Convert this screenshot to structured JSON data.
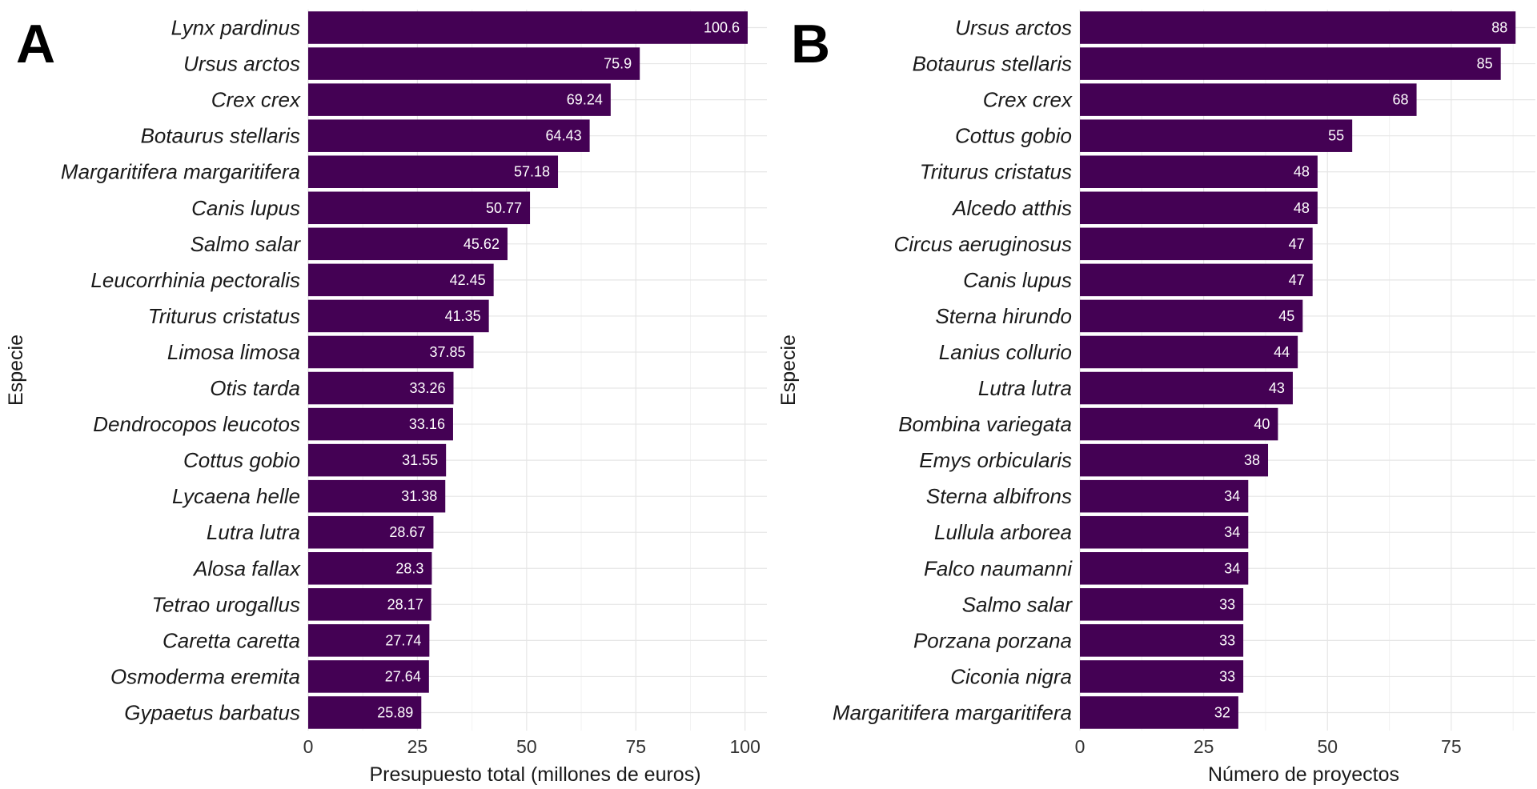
{
  "chart_data": [
    {
      "type": "bar",
      "orientation": "horizontal",
      "panel_tag": "A",
      "xlabel": "Presupuesto total (millones de euros)",
      "ylabel": "Especie",
      "xlim": [
        0,
        105
      ],
      "xticks": [
        0,
        25,
        50,
        75,
        100
      ],
      "grid": true,
      "bar_color": "#440154",
      "categories": [
        "Lynx pardinus",
        "Ursus arctos",
        "Crex crex",
        "Botaurus stellaris",
        "Margaritifera margaritifera",
        "Canis lupus",
        "Salmo salar",
        "Leucorrhinia pectoralis",
        "Triturus cristatus",
        "Limosa limosa",
        "Otis tarda",
        "Dendrocopos leucotos",
        "Cottus gobio",
        "Lycaena helle",
        "Lutra lutra",
        "Alosa fallax",
        "Tetrao urogallus",
        "Caretta caretta",
        "Osmoderma eremita",
        "Gypaetus barbatus"
      ],
      "values": [
        100.6,
        75.9,
        69.24,
        64.43,
        57.18,
        50.77,
        45.62,
        42.45,
        41.35,
        37.85,
        33.26,
        33.16,
        31.55,
        31.38,
        28.67,
        28.3,
        28.17,
        27.74,
        27.64,
        25.89
      ],
      "value_labels": [
        "100.6",
        "75.9",
        "69.24",
        "64.43",
        "57.18",
        "50.77",
        "45.62",
        "42.45",
        "41.35",
        "37.85",
        "33.26",
        "33.16",
        "31.55",
        "31.38",
        "28.67",
        "28.3",
        "28.17",
        "27.74",
        "27.64",
        "25.89"
      ]
    },
    {
      "type": "bar",
      "orientation": "horizontal",
      "panel_tag": "B",
      "xlabel": "Número de proyectos",
      "ylabel": "Especie",
      "xlim": [
        0,
        92
      ],
      "xticks": [
        0,
        25,
        50,
        75
      ],
      "grid": true,
      "bar_color": "#440154",
      "categories": [
        "Ursus arctos",
        "Botaurus stellaris",
        "Crex crex",
        "Cottus gobio",
        "Triturus cristatus",
        "Alcedo atthis",
        "Circus aeruginosus",
        "Canis lupus",
        "Sterna hirundo",
        "Lanius collurio",
        "Lutra lutra",
        "Bombina variegata",
        "Emys orbicularis",
        "Sterna albifrons",
        "Lullula arborea",
        "Falco naumanni",
        "Salmo salar",
        "Porzana porzana",
        "Ciconia nigra",
        "Margaritifera margaritifera"
      ],
      "values": [
        88,
        85,
        68,
        55,
        48,
        48,
        47,
        47,
        45,
        44,
        43,
        40,
        38,
        34,
        34,
        34,
        33,
        33,
        33,
        32
      ],
      "value_labels": [
        "88",
        "85",
        "68",
        "55",
        "48",
        "48",
        "47",
        "47",
        "45",
        "44",
        "43",
        "40",
        "38",
        "34",
        "34",
        "34",
        "33",
        "33",
        "33",
        "32"
      ]
    }
  ]
}
